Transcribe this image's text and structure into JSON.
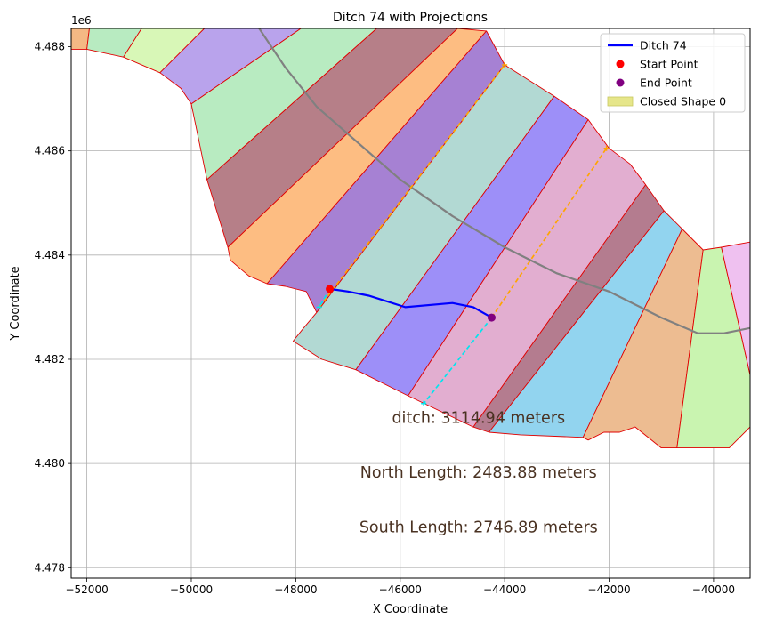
{
  "chart_data": {
    "type": "line",
    "title": "Ditch 74 with Projections",
    "xlabel": "X Coordinate",
    "ylabel": "Y Coordinate",
    "y_offset_label": "1e6",
    "xlim": [
      -52300,
      -39300
    ],
    "ylim": [
      4477.8,
      4488.35
    ],
    "x_ticks": [
      -52000,
      -50000,
      -48000,
      -46000,
      -44000,
      -42000,
      -40000
    ],
    "x_tick_labels": [
      "−52000",
      "−50000",
      "−48000",
      "−46000",
      "−44000",
      "−42000",
      "−40000"
    ],
    "y_ticks": [
      4478,
      4480,
      4482,
      4484,
      4486,
      4488
    ],
    "y_tick_labels": [
      "4.478",
      "4.480",
      "4.482",
      "4.484",
      "4.486",
      "4.488"
    ],
    "grid": true,
    "legend_position": "top-right",
    "legend": [
      {
        "label": "Ditch 74",
        "kind": "line",
        "color": "#0000ff"
      },
      {
        "label": "Start Point",
        "kind": "marker",
        "color": "#ff0000"
      },
      {
        "label": "End Point",
        "kind": "marker",
        "color": "#800080"
      },
      {
        "label": "Closed Shape 0",
        "kind": "patch",
        "color": "#e6e68a"
      }
    ],
    "strips": [
      {
        "color": "#f4b884",
        "points": [
          [
            -52300,
            4488.35
          ],
          [
            -51950,
            4488.35
          ],
          [
            -52000,
            4487.95
          ],
          [
            -52300,
            4487.95
          ]
        ]
      },
      {
        "color": "#b8ebc1",
        "points": [
          [
            -51950,
            4488.35
          ],
          [
            -50950,
            4488.35
          ],
          [
            -51300,
            4487.8
          ],
          [
            -52000,
            4487.95
          ]
        ]
      },
      {
        "color": "#d8f7b7",
        "points": [
          [
            -50950,
            4488.35
          ],
          [
            -49750,
            4488.35
          ],
          [
            -50600,
            4487.5
          ],
          [
            -51300,
            4487.8
          ]
        ]
      },
      {
        "color": "#b9a3ec",
        "points": [
          [
            -49750,
            4488.35
          ],
          [
            -47900,
            4488.35
          ],
          [
            -50000,
            4486.9
          ],
          [
            -50200,
            4487.2
          ],
          [
            -50600,
            4487.5
          ]
        ]
      },
      {
        "color": "#b8ebc1",
        "points": [
          [
            -47900,
            4488.35
          ],
          [
            -46450,
            4488.35
          ],
          [
            -49700,
            4485.45
          ],
          [
            -50000,
            4486.9
          ]
        ]
      },
      {
        "color": "#b67f88",
        "points": [
          [
            -46450,
            4488.35
          ],
          [
            -44900,
            4488.35
          ],
          [
            -49300,
            4484.15
          ],
          [
            -49700,
            4485.45
          ]
        ]
      },
      {
        "color": "#fdbd82",
        "points": [
          [
            -44900,
            4488.35
          ],
          [
            -44350,
            4488.3
          ],
          [
            -48550,
            4483.45
          ],
          [
            -48900,
            4483.6
          ],
          [
            -49250,
            4483.9
          ],
          [
            -49300,
            4484.15
          ]
        ]
      },
      {
        "color": "#a681d3",
        "points": [
          [
            -44350,
            4488.3
          ],
          [
            -44000,
            4487.65
          ],
          [
            -47600,
            4482.9
          ],
          [
            -47800,
            4483.3
          ],
          [
            -48200,
            4483.4
          ],
          [
            -48550,
            4483.45
          ]
        ]
      },
      {
        "color": "#b2d9d3",
        "points": [
          [
            -44000,
            4487.65
          ],
          [
            -43050,
            4487.05
          ],
          [
            -46850,
            4481.8
          ],
          [
            -47500,
            4482.0
          ],
          [
            -48050,
            4482.35
          ],
          [
            -47850,
            4482.6
          ],
          [
            -47600,
            4482.9
          ]
        ]
      },
      {
        "color": "#9d8ff8",
        "points": [
          [
            -43050,
            4487.05
          ],
          [
            -42400,
            4486.6
          ],
          [
            -45850,
            4481.3
          ],
          [
            -46850,
            4481.8
          ]
        ]
      },
      {
        "color": "#e2aed0",
        "points": [
          [
            -42400,
            4486.6
          ],
          [
            -42000,
            4486.05
          ],
          [
            -41600,
            4485.75
          ],
          [
            -41300,
            4485.35
          ],
          [
            -44600,
            4480.7
          ],
          [
            -45850,
            4481.3
          ]
        ]
      },
      {
        "color": "#b47c8f",
        "points": [
          [
            -41300,
            4485.35
          ],
          [
            -40950,
            4484.85
          ],
          [
            -44300,
            4480.6
          ],
          [
            -44600,
            4480.7
          ]
        ]
      },
      {
        "color": "#92d4ef",
        "points": [
          [
            -40950,
            4484.85
          ],
          [
            -40600,
            4484.5
          ],
          [
            -42500,
            4480.5
          ],
          [
            -43700,
            4480.55
          ],
          [
            -44300,
            4480.6
          ]
        ]
      },
      {
        "color": "#edbc91",
        "points": [
          [
            -40600,
            4484.5
          ],
          [
            -40200,
            4484.1
          ],
          [
            -40700,
            4480.3
          ],
          [
            -41000,
            4480.3
          ],
          [
            -41500,
            4480.7
          ],
          [
            -41800,
            4480.6
          ],
          [
            -42100,
            4480.6
          ],
          [
            -42400,
            4480.45
          ],
          [
            -42500,
            4480.5
          ]
        ]
      },
      {
        "color": "#c9f4b0",
        "points": [
          [
            -40200,
            4484.1
          ],
          [
            -39850,
            4484.15
          ],
          [
            -39300,
            4481.7
          ],
          [
            -39300,
            4480.7
          ],
          [
            -39700,
            4480.3
          ],
          [
            -40700,
            4480.3
          ]
        ]
      },
      {
        "color": "#efc1f0",
        "points": [
          [
            -39850,
            4484.15
          ],
          [
            -39300,
            4484.25
          ],
          [
            -39300,
            4481.7
          ]
        ]
      }
    ],
    "road": {
      "color": "#808080",
      "x": [
        -48700,
        -48200,
        -47600,
        -46800,
        -46000,
        -45000,
        -44000,
        -43000,
        -42000,
        -41000,
        -40300,
        -39800,
        -39300
      ],
      "y": [
        4488.35,
        4487.6,
        4486.85,
        4486.15,
        4485.45,
        4484.75,
        4484.15,
        4483.65,
        4483.3,
        4482.8,
        4482.5,
        4482.5,
        4482.6
      ]
    },
    "ditch": {
      "name": "Ditch 74",
      "color": "#0000ff",
      "x": [
        -47350,
        -47000,
        -46600,
        -45900,
        -45000,
        -44600,
        -44250
      ],
      "y": [
        4483.35,
        4483.3,
        4483.22,
        4483.0,
        4483.08,
        4483.0,
        4482.8
      ]
    },
    "start_point": {
      "name": "Start Point",
      "x": -47350,
      "y": 4483.35,
      "color": "#ff0000"
    },
    "end_point": {
      "name": "End Point",
      "x": -44250,
      "y": 4482.8,
      "color": "#800080"
    },
    "projections": [
      {
        "color": "#ffa500",
        "x": [
          -47550,
          -44000
        ],
        "y": [
          4483.0,
          4487.65
        ]
      },
      {
        "color": "#ffa500",
        "x": [
          -44250,
          -42050
        ],
        "y": [
          4482.8,
          4486.05
        ]
      },
      {
        "color": "#00e5ee",
        "x": [
          -47350,
          -47550
        ],
        "y": [
          4483.35,
          4483.0
        ]
      },
      {
        "color": "#00e5ee",
        "x": [
          -44250,
          -45550
        ],
        "y": [
          4482.8,
          4481.15
        ]
      }
    ],
    "annotations": [
      {
        "text": "ditch: 3114.94 meters",
        "x": -44500,
        "y": 4480.88
      },
      {
        "text": "North Length: 2483.88 meters",
        "x": -44500,
        "y": 4479.83
      },
      {
        "text": "South Length: 2746.89 meters",
        "x": -44500,
        "y": 4478.78
      }
    ]
  }
}
